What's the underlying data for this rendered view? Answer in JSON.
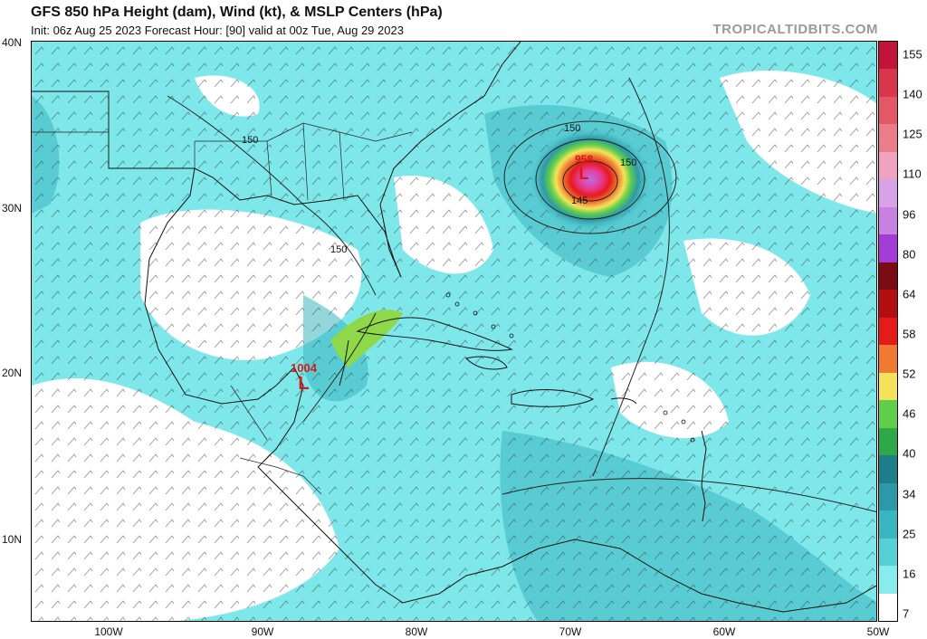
{
  "header": {
    "title": "GFS 850 hPa Height (dam), Wind (kt), & MSLP Centers (hPa)",
    "subtitle": "Init: 06z Aug 25 2023    Forecast Hour: [90]    valid at 00z Tue, Aug 29 2023",
    "brand": "TROPICALTIDBITS.COM"
  },
  "map": {
    "lat_labels": [
      "40N",
      "30N",
      "20N",
      "10N"
    ],
    "lon_labels": [
      "100W",
      "90W",
      "80W",
      "70W",
      "60W",
      "50W"
    ],
    "contour_labels": [
      "150",
      "150",
      "150",
      "150",
      "145"
    ],
    "low_centers": [
      {
        "pressure": "1004",
        "symbol": "L",
        "color": "#d81818"
      },
      {
        "pressure": "958",
        "symbol": "L",
        "color": "#d81818"
      }
    ]
  },
  "colorbar": {
    "labels": [
      "155",
      "140",
      "125",
      "110",
      "96",
      "80",
      "64",
      "58",
      "52",
      "46",
      "40",
      "34",
      "25",
      "16",
      "7"
    ],
    "colors": [
      "#c2133b",
      "#d9364e",
      "#e45766",
      "#eb7d88",
      "#f0a2c0",
      "#d8a3e6",
      "#c781e0",
      "#a33bd6",
      "#7a0d14",
      "#b10f12",
      "#e51b1b",
      "#f07a32",
      "#f4e35a",
      "#5fcf4a",
      "#2fa849",
      "#1e7e8a",
      "#2e99a6",
      "#3ab6c0",
      "#55d1d6",
      "#86ecec",
      "#ffffff"
    ]
  }
}
